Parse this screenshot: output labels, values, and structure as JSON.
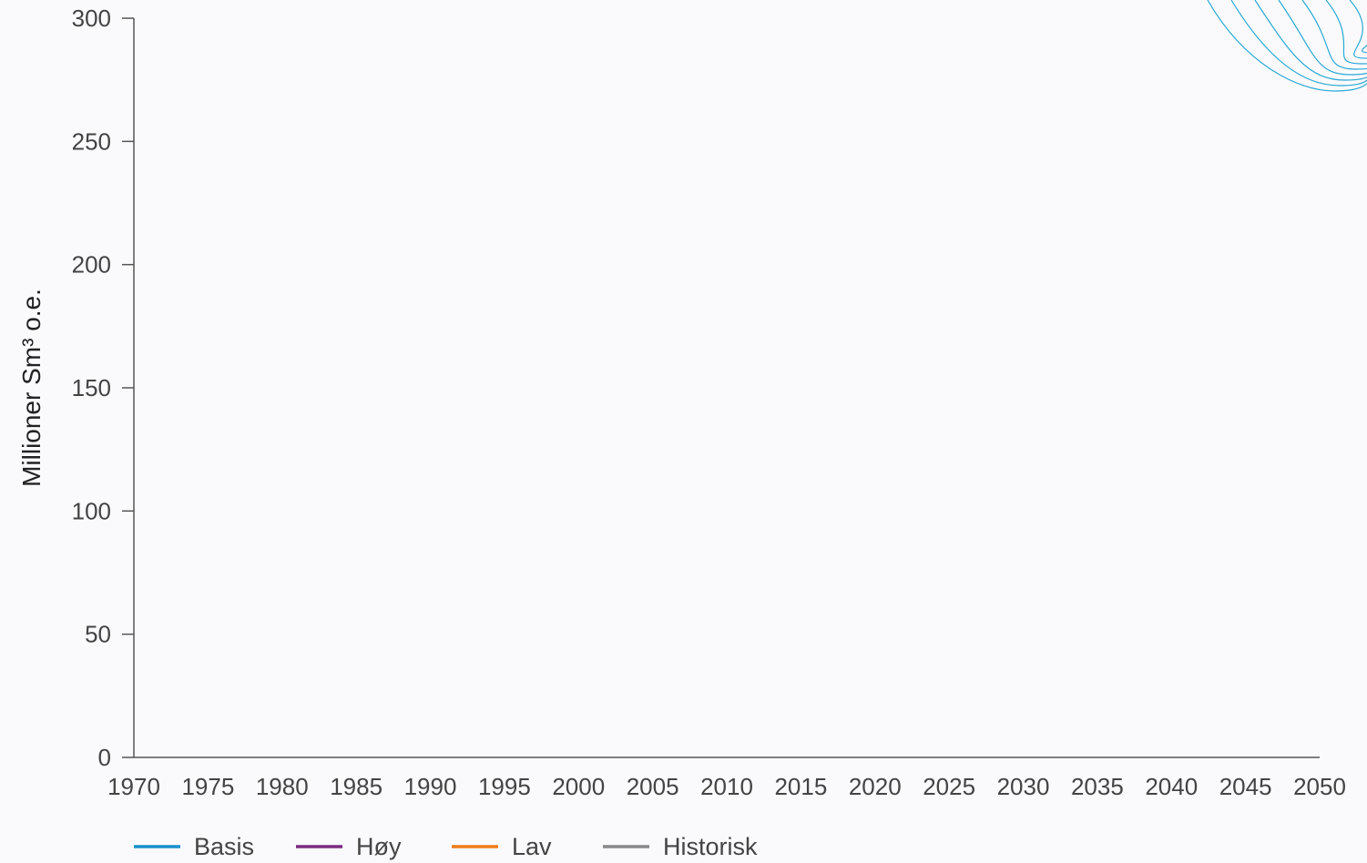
{
  "chart_data": {
    "type": "line",
    "ylabel": "Millioner Sm³ o.e.",
    "xlabel": "",
    "xlim": [
      1970,
      2050
    ],
    "ylim": [
      0,
      300
    ],
    "x_ticks": [
      "1970",
      "1975",
      "1980",
      "1985",
      "1990",
      "1995",
      "2000",
      "2005",
      "2010",
      "2015",
      "2020",
      "2025",
      "2030",
      "2035",
      "2040",
      "2045",
      "2050"
    ],
    "y_ticks": [
      "0",
      "50",
      "100",
      "150",
      "200",
      "250",
      "300"
    ],
    "grid": false,
    "legend_position": "bottom-left",
    "series": [
      {
        "name": "Basis",
        "color": "#1a8fcc",
        "x": [],
        "y": []
      },
      {
        "name": "Høy",
        "color": "#7b2a80",
        "x": [],
        "y": []
      },
      {
        "name": "Lav",
        "color": "#ee7d1a",
        "x": [],
        "y": []
      },
      {
        "name": "Historisk",
        "color": "#888888",
        "x": [],
        "y": []
      }
    ],
    "decoration": {
      "name": "wave-lines-decoration",
      "color": "#29a8d6"
    }
  }
}
